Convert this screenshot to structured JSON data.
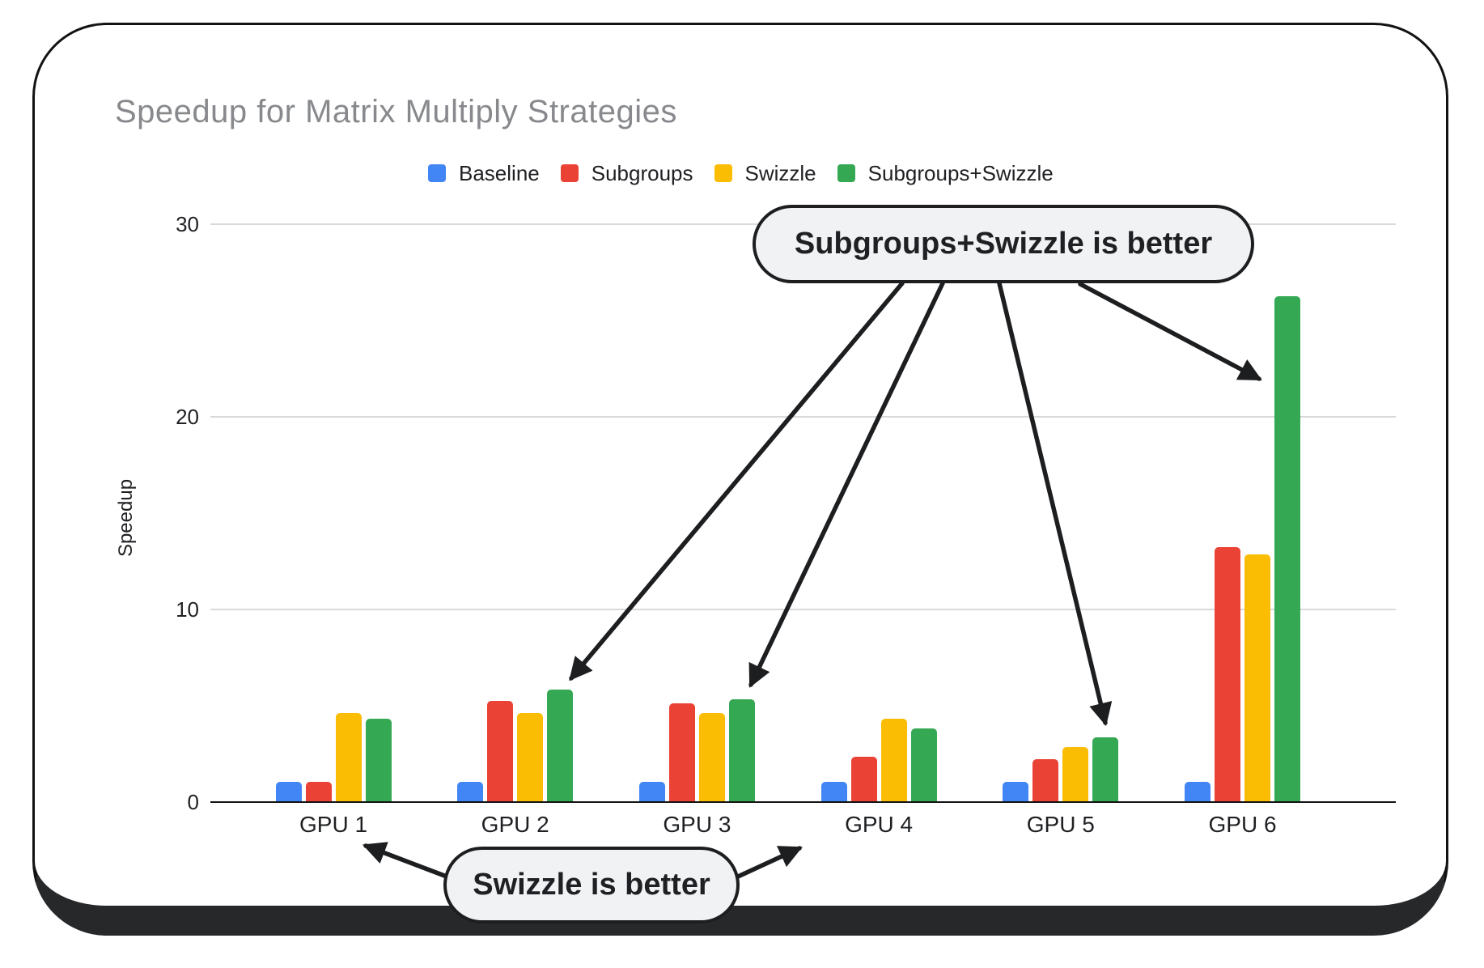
{
  "chart_data": {
    "type": "bar",
    "title": "Speedup for Matrix Multiply Strategies",
    "xlabel": "",
    "ylabel": "Speedup",
    "categories": [
      "GPU 1",
      "GPU 2",
      "GPU 3",
      "GPU 4",
      "GPU 5",
      "GPU 6"
    ],
    "series": [
      {
        "name": "Baseline",
        "color": "#4285F4",
        "values": [
          1.0,
          1.0,
          1.0,
          1.0,
          1.0,
          1.0
        ]
      },
      {
        "name": "Subgroups",
        "color": "#EA4335",
        "values": [
          1.0,
          5.2,
          5.1,
          2.3,
          2.2,
          13.2
        ]
      },
      {
        "name": "Swizzle",
        "color": "#FBBC04",
        "values": [
          4.6,
          4.6,
          4.6,
          4.3,
          2.8,
          12.8
        ]
      },
      {
        "name": "Subgroups+Swizzle",
        "color": "#34A853",
        "values": [
          4.3,
          5.8,
          5.3,
          3.8,
          3.3,
          26.2
        ]
      }
    ],
    "yticks": [
      0,
      10,
      20,
      30
    ],
    "ylim": [
      0,
      32
    ],
    "grid": true,
    "legend_position": "top"
  },
  "annotations": [
    {
      "id": "subgroups-swizzle-better",
      "text": "Subgroups+Swizzle is better",
      "targets": [
        "GPU 2",
        "GPU 3",
        "GPU 5",
        "GPU 6"
      ]
    },
    {
      "id": "swizzle-better",
      "text": "Swizzle is better",
      "targets": [
        "GPU 1",
        "GPU 4"
      ]
    }
  ],
  "colors": {
    "title_text": "#87898c",
    "axis_text": "#1f2023",
    "gridline": "#d8d9da",
    "axis_line": "#131313",
    "card_border": "#121212",
    "card_bottom_band": "#26282a",
    "bubble_fill": "#f1f2f3",
    "bubble_border": "#1d1e20",
    "arrow": "#1d1e20"
  }
}
